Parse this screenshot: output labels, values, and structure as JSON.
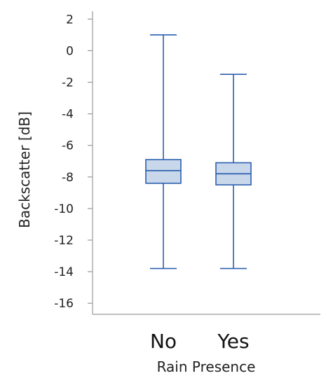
{
  "chart_data": {
    "type": "box",
    "xlabel": "Rain Presence",
    "ylabel": "Backscatter [dB]",
    "ylim": [
      -16.7,
      2.5
    ],
    "yticks": [
      2,
      0,
      -2,
      -4,
      -6,
      -8,
      -10,
      -12,
      -14,
      -16
    ],
    "yticklabels": [
      "2",
      "0",
      "-2",
      "-4",
      "-6",
      "-8",
      "-10",
      "-12",
      "-14",
      "-16"
    ],
    "categories": [
      "No",
      "Yes"
    ],
    "boxes": [
      {
        "category": "No",
        "whisker_low": -13.8,
        "q1": -8.4,
        "median": -7.6,
        "q3": -6.9,
        "whisker_high": 1.0
      },
      {
        "category": "Yes",
        "whisker_low": -13.8,
        "q1": -8.5,
        "median": -7.8,
        "q3": -7.1,
        "whisker_high": -1.5
      }
    ],
    "colors": {
      "box_fill": "#c9d7ea",
      "box_stroke": "#2b5fb0",
      "axis": "#999999"
    },
    "grid": false,
    "legend": "none"
  }
}
